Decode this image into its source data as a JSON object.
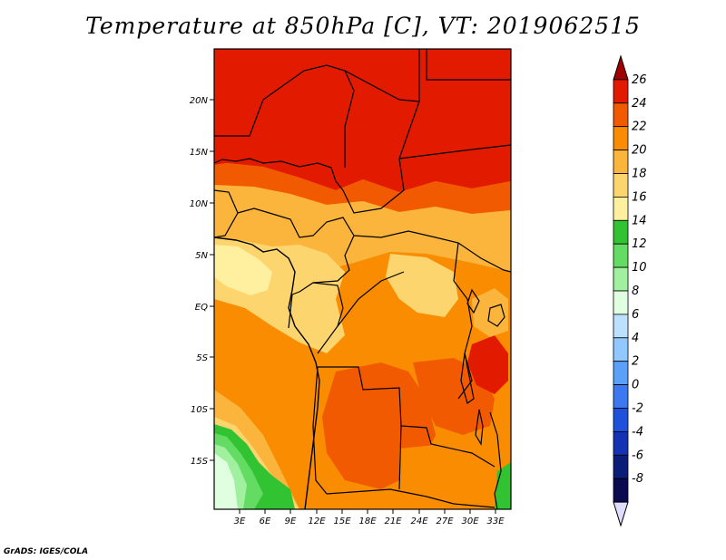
{
  "title": "Temperature at 850hPa [C], VT: 2019062515",
  "credit": "GrADS: IGES/COLA",
  "map": {
    "lat_ticks": [
      "20N",
      "15N",
      "10N",
      "5N",
      "EQ",
      "5S",
      "10S",
      "15S"
    ],
    "lon_ticks": [
      "3E",
      "6E",
      "9E",
      "12E",
      "15E",
      "18E",
      "21E",
      "24E",
      "27E",
      "30E",
      "33E"
    ]
  },
  "colorbar": {
    "labels": [
      "26",
      "24",
      "22",
      "20",
      "18",
      "16",
      "14",
      "12",
      "10",
      "8",
      "6",
      "4",
      "2",
      "0",
      "-2",
      "-4",
      "-6",
      "-8"
    ],
    "colors": [
      "#a00000",
      "#e11a00",
      "#f15a00",
      "#f98c00",
      "#fbb43c",
      "#fdd56e",
      "#fff0a0",
      "#32c332",
      "#64dc64",
      "#a0f0a0",
      "#e0ffe0",
      "#bde0ff",
      "#90c8ff",
      "#5aa0f8",
      "#3c78f0",
      "#1e50dc",
      "#1432b4",
      "#0a1e78",
      "#0a0a50",
      "#e0dcff"
    ]
  }
}
